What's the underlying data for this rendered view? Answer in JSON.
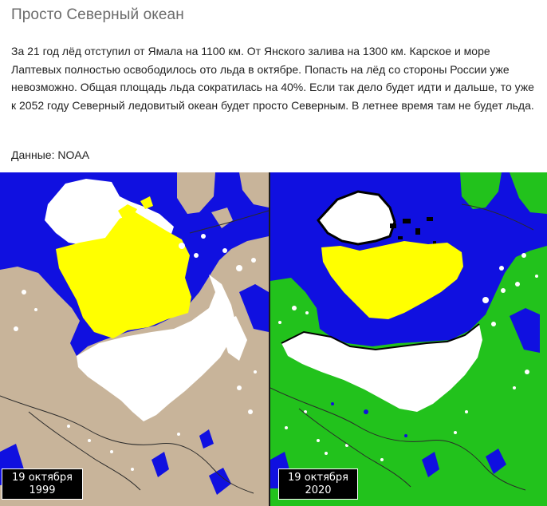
{
  "article": {
    "title": "Просто Северный океан",
    "body": "За 21 год лёд отступил от Ямала на 1100 км. От Янского залива на 1300 км. Карское и море Лаптевых полностью освободилось ото льда в октябре. Попасть на лёд со стороны России уже невозможно. Общая площадь льда сократилась на 40%. Если так дело будет идти и дальше, то уже к 2052 году Северный ледовитый океан будет просто Северным. В летнее время там не будет льда.",
    "source": "Данные: NOAA"
  },
  "maps": {
    "left": {
      "date_line1": "19 октября",
      "date_line2": "1999"
    },
    "right": {
      "date_line1": "19 октября",
      "date_line2": "2020"
    }
  },
  "colors": {
    "ocean": "#1010e0",
    "ice": "#ffff00",
    "snow": "#ffffff",
    "land_1999": "#c8b49a",
    "land_2020": "#22c21c"
  }
}
